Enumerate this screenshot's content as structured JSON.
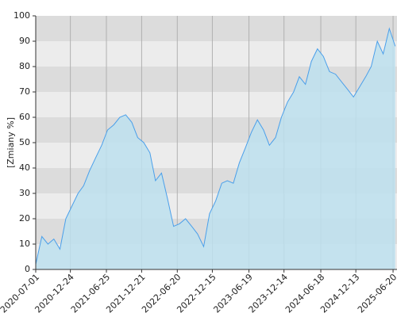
{
  "chart_data": {
    "type": "area",
    "y_label": "[Zmiany %]",
    "x": [
      "2020-07-01",
      "2020-08-01",
      "2020-09-01",
      "2020-10-01",
      "2020-11-01",
      "2020-12-01",
      "2021-01-01",
      "2021-02-01",
      "2021-03-01",
      "2021-04-01",
      "2021-05-01",
      "2021-06-01",
      "2021-07-01",
      "2021-08-01",
      "2021-09-01",
      "2021-10-01",
      "2021-11-01",
      "2021-12-01",
      "2022-01-01",
      "2022-02-01",
      "2022-03-01",
      "2022-04-01",
      "2022-05-01",
      "2022-06-01",
      "2022-07-01",
      "2022-08-01",
      "2022-09-01",
      "2022-10-01",
      "2022-11-01",
      "2022-12-01",
      "2023-01-01",
      "2023-02-01",
      "2023-03-01",
      "2023-04-01",
      "2023-05-01",
      "2023-06-01",
      "2023-07-01",
      "2023-08-01",
      "2023-09-01",
      "2023-10-01",
      "2023-11-01",
      "2023-12-01",
      "2024-01-01",
      "2024-02-01",
      "2024-03-01",
      "2024-04-01",
      "2024-05-01",
      "2024-06-01",
      "2024-07-01",
      "2024-08-01",
      "2024-09-01",
      "2024-10-01",
      "2024-11-01",
      "2024-12-01",
      "2025-01-01",
      "2025-02-01",
      "2025-03-01",
      "2025-04-01",
      "2025-05-01",
      "2025-06-01",
      "2025-07-01"
    ],
    "series": [
      {
        "color": "#4a9fea",
        "fill": "#bde0ee",
        "values": [
          2,
          13,
          10,
          12,
          8,
          20,
          25,
          30,
          33,
          39,
          44,
          49,
          55,
          57,
          60,
          61,
          58,
          52,
          50,
          46,
          35,
          38,
          28,
          17,
          18,
          20,
          17,
          14,
          9,
          22,
          27,
          34,
          35,
          34,
          42,
          48,
          54,
          59,
          55,
          49,
          52,
          60,
          66,
          70,
          76,
          73,
          82,
          87,
          84,
          78,
          77,
          74,
          71,
          68,
          72,
          76,
          80,
          90,
          85,
          95,
          88
        ]
      }
    ],
    "xlim": [
      "2020-07-01",
      "2025-07-10"
    ],
    "xticks": [
      "2020-07-01",
      "2020-12-24",
      "2021-06-25",
      "2021-12-21",
      "2022-06-20",
      "2022-12-15",
      "2023-06-19",
      "2023-12-14",
      "2024-06-18",
      "2024-12-13",
      "2025-06-20"
    ],
    "ylim": [
      0,
      100
    ],
    "yticks": [
      0,
      10,
      20,
      30,
      40,
      50,
      60,
      70,
      80,
      90,
      100
    ],
    "grid": true
  }
}
